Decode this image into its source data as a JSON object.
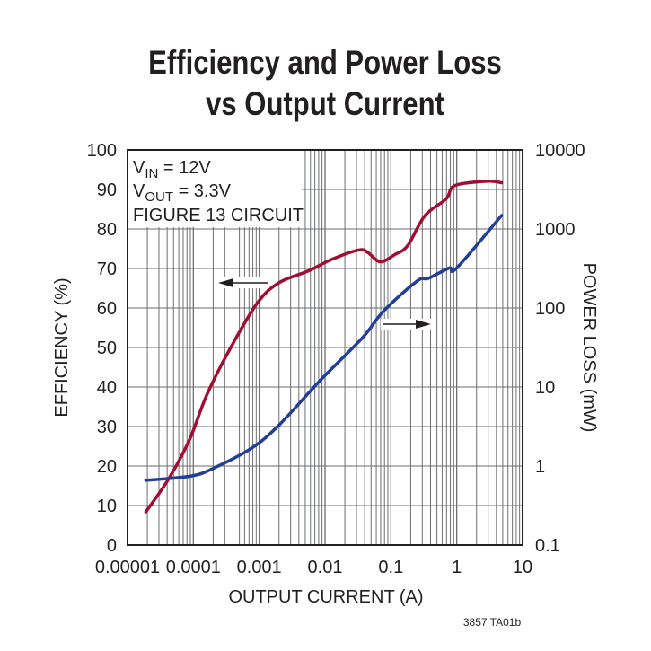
{
  "chart_data": {
    "type": "line",
    "title_lines": [
      "Efficiency and Power Loss",
      "vs Output Current"
    ],
    "xlabel": "OUTPUT CURRENT (A)",
    "ylabel_left": "EFFICIENCY (%)",
    "ylabel_right": "POWER LOSS (mW)",
    "x_scale": "log",
    "xlim": [
      1e-05,
      10
    ],
    "ylim_left": [
      0,
      100
    ],
    "y_right_scale": "log",
    "ylim_right": [
      0.1,
      10000
    ],
    "x_ticks": [
      "0.00001",
      "0.0001",
      "0.001",
      "0.01",
      "0.1",
      "1",
      "10"
    ],
    "y_left_ticks": [
      "0",
      "10",
      "20",
      "30",
      "40",
      "50",
      "60",
      "70",
      "80",
      "90",
      "100"
    ],
    "y_right_ticks": [
      "0.1",
      "1",
      "10",
      "100",
      "1000",
      "10000"
    ],
    "grid": true,
    "annotations": {
      "vin": {
        "main": "V",
        "sub": "IN",
        "rest": " = 12V"
      },
      "vout": {
        "main": "V",
        "sub": "OUT",
        "rest": " = 3.3V"
      },
      "circuit": "FIGURE 13 CIRCUIT"
    },
    "footer": "3857 TA01b",
    "series": [
      {
        "axis": "left",
        "color": "#a00f33",
        "x": [
          1.9e-05,
          4.2e-05,
          8.7e-05,
          0.00016,
          0.00037,
          0.00095,
          0.002,
          0.0056,
          0.013,
          0.033,
          0.045,
          0.069,
          0.117,
          0.18,
          0.33,
          0.69,
          0.94,
          2.97,
          4.8
        ],
        "y": [
          8.4,
          16.7,
          26.6,
          38,
          50,
          61.4,
          66.4,
          69.4,
          72.4,
          74.7,
          74,
          71.7,
          73.6,
          75.8,
          83.4,
          87.6,
          91,
          92.1,
          91.7
        ]
      },
      {
        "axis": "right",
        "color": "#233f95",
        "x": [
          1.9e-05,
          9.5e-05,
          0.00022,
          0.00078,
          0.002,
          0.0086,
          0.037,
          0.078,
          0.25,
          0.37,
          0.77,
          1.0,
          4.8
        ],
        "y": [
          0.66,
          0.75,
          0.97,
          1.7,
          3.3,
          12.3,
          42,
          92,
          219,
          237,
          321,
          321,
          1480
        ]
      }
    ]
  }
}
